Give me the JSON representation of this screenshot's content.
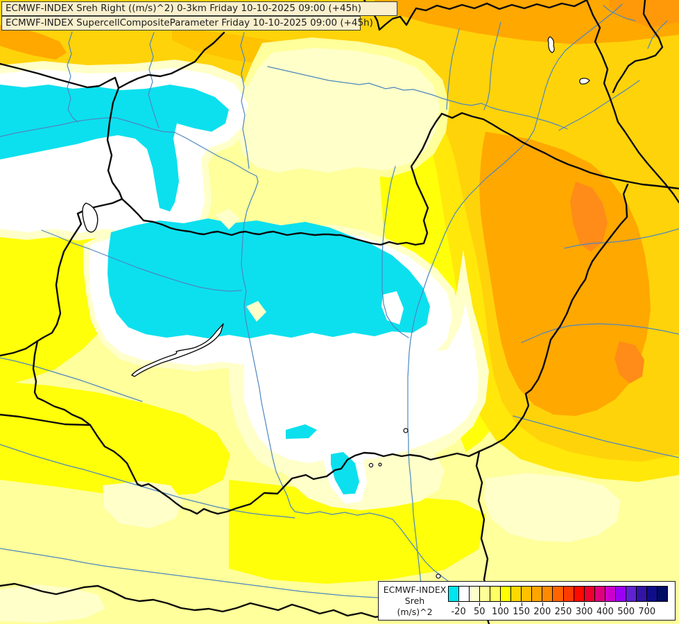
{
  "title": {
    "line1": "ECMWF-INDEX Sreh Right ((m/s)^2) 0-3km Friday 10-10-2025 09:00 (+45h)",
    "line2": "ECMWF-INDEX SupercellCompositeParameter Friday 10-10-2025 09:00 (+45h)"
  },
  "legend": {
    "title_lines": [
      "ECMWF-INDEX",
      "Sreh",
      "(m/s)^2"
    ],
    "colors": [
      "#00e5f0",
      "#ffffff",
      "#ffffcc",
      "#ffff99",
      "#ffff64",
      "#ffff00",
      "#ffd800",
      "#ffc000",
      "#ffa500",
      "#ff8a00",
      "#ff6400",
      "#ff3c00",
      "#ff0a00",
      "#ee0030",
      "#e0007d",
      "#cc00cc",
      "#9b00f5",
      "#6023d2",
      "#3214a8",
      "#100d8a",
      "#000d62"
    ],
    "ticks": [
      {
        "label": "-20",
        "pos": 1
      },
      {
        "label": "50",
        "pos": 3
      },
      {
        "label": "100",
        "pos": 5
      },
      {
        "label": "150",
        "pos": 7
      },
      {
        "label": "200",
        "pos": 9
      },
      {
        "label": "250",
        "pos": 11
      },
      {
        "label": "300",
        "pos": 13
      },
      {
        "label": "400",
        "pos": 15
      },
      {
        "label": "500",
        "pos": 17
      },
      {
        "label": "700",
        "pos": 19
      }
    ]
  },
  "map_palette": {
    "cyan": "#0ce0ee",
    "white": "#ffffff",
    "cream": "#ffffc9",
    "pale_yellow": "#ffff9b",
    "yellow": "#ffff0a",
    "deep_yellow": "#ffe80a",
    "gold": "#ffd30a",
    "orange": "#ffa800",
    "dark_orange": "#ff8b19",
    "country_border": "#0a0a0a",
    "river": "#4d86c0",
    "title_background": "#faf0cd"
  }
}
